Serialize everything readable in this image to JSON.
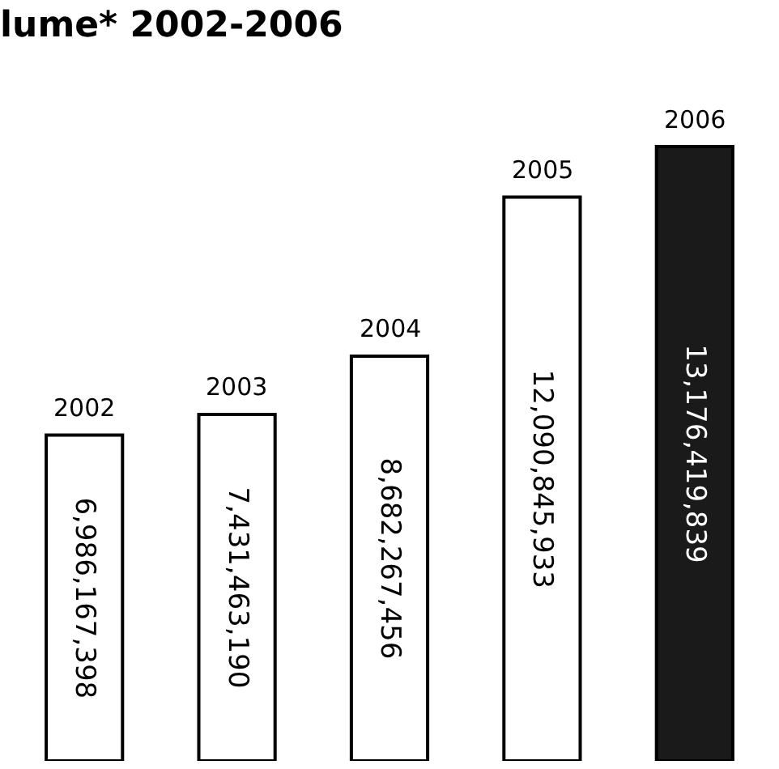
{
  "chart_data": {
    "type": "bar",
    "title": "lume* 2002-2006",
    "categories": [
      "2002",
      "2003",
      "2004",
      "2005",
      "2006"
    ],
    "values": [
      6986167398,
      7431463190,
      8682267456,
      12090845933,
      13176419839
    ],
    "value_labels": [
      "6,986,167,398",
      "7,431,463,190",
      "8,682,267,456",
      "12,090,845,933",
      "13,176,419,839"
    ],
    "colors": [
      "#ffffff",
      "#ffffff",
      "#ffffff",
      "#ffffff",
      "#1a1a1a"
    ]
  }
}
